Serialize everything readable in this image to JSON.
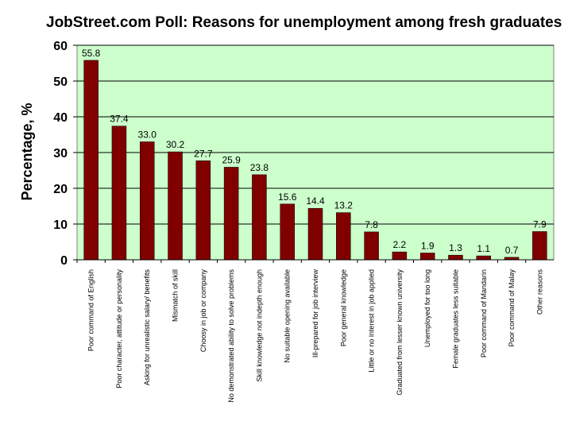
{
  "chart_data": {
    "type": "bar",
    "title": "JobStreet.com Poll: Reasons for unemployment among fresh graduates",
    "ylabel": "Percentage, %",
    "xlabel": "",
    "ylim": [
      0,
      60
    ],
    "yticks": [
      0,
      10,
      20,
      30,
      40,
      50,
      60
    ],
    "grid": true,
    "legend": "none",
    "plot_background": "#ccffcc",
    "bar_color": "#800000",
    "categories": [
      "Poor command of English",
      "Poor character, attitude or personality",
      "Asking for unrealistic salary/ benefits",
      "Mismatch of skill",
      "Choosy in job or company",
      "No demonstrated ability to solve problems",
      "Skill knowledge not indepth enough",
      "No suitable opening available",
      "Ill-prepared for job interview",
      "Poor general knowledge",
      "Little or no interest in job applied",
      "Graduated from lesser known university",
      "Unemployed for too long",
      "Female graduates less suitable",
      "Poor command of Mandarin",
      "Poor command of Malay",
      "Other reasons"
    ],
    "values": [
      55.8,
      37.4,
      33.0,
      30.2,
      27.7,
      25.9,
      23.8,
      15.6,
      14.4,
      13.2,
      7.8,
      2.2,
      1.9,
      1.3,
      1.1,
      0.7,
      7.9
    ],
    "value_labels": [
      "55.8",
      "37.4",
      "33.0",
      "30.2",
      "27.7",
      "25.9",
      "23.8",
      "15.6",
      "14.4",
      "13.2",
      "7.8",
      "2.2",
      "1.9",
      "1.3",
      "1.1",
      "0.7",
      "7.9"
    ]
  }
}
